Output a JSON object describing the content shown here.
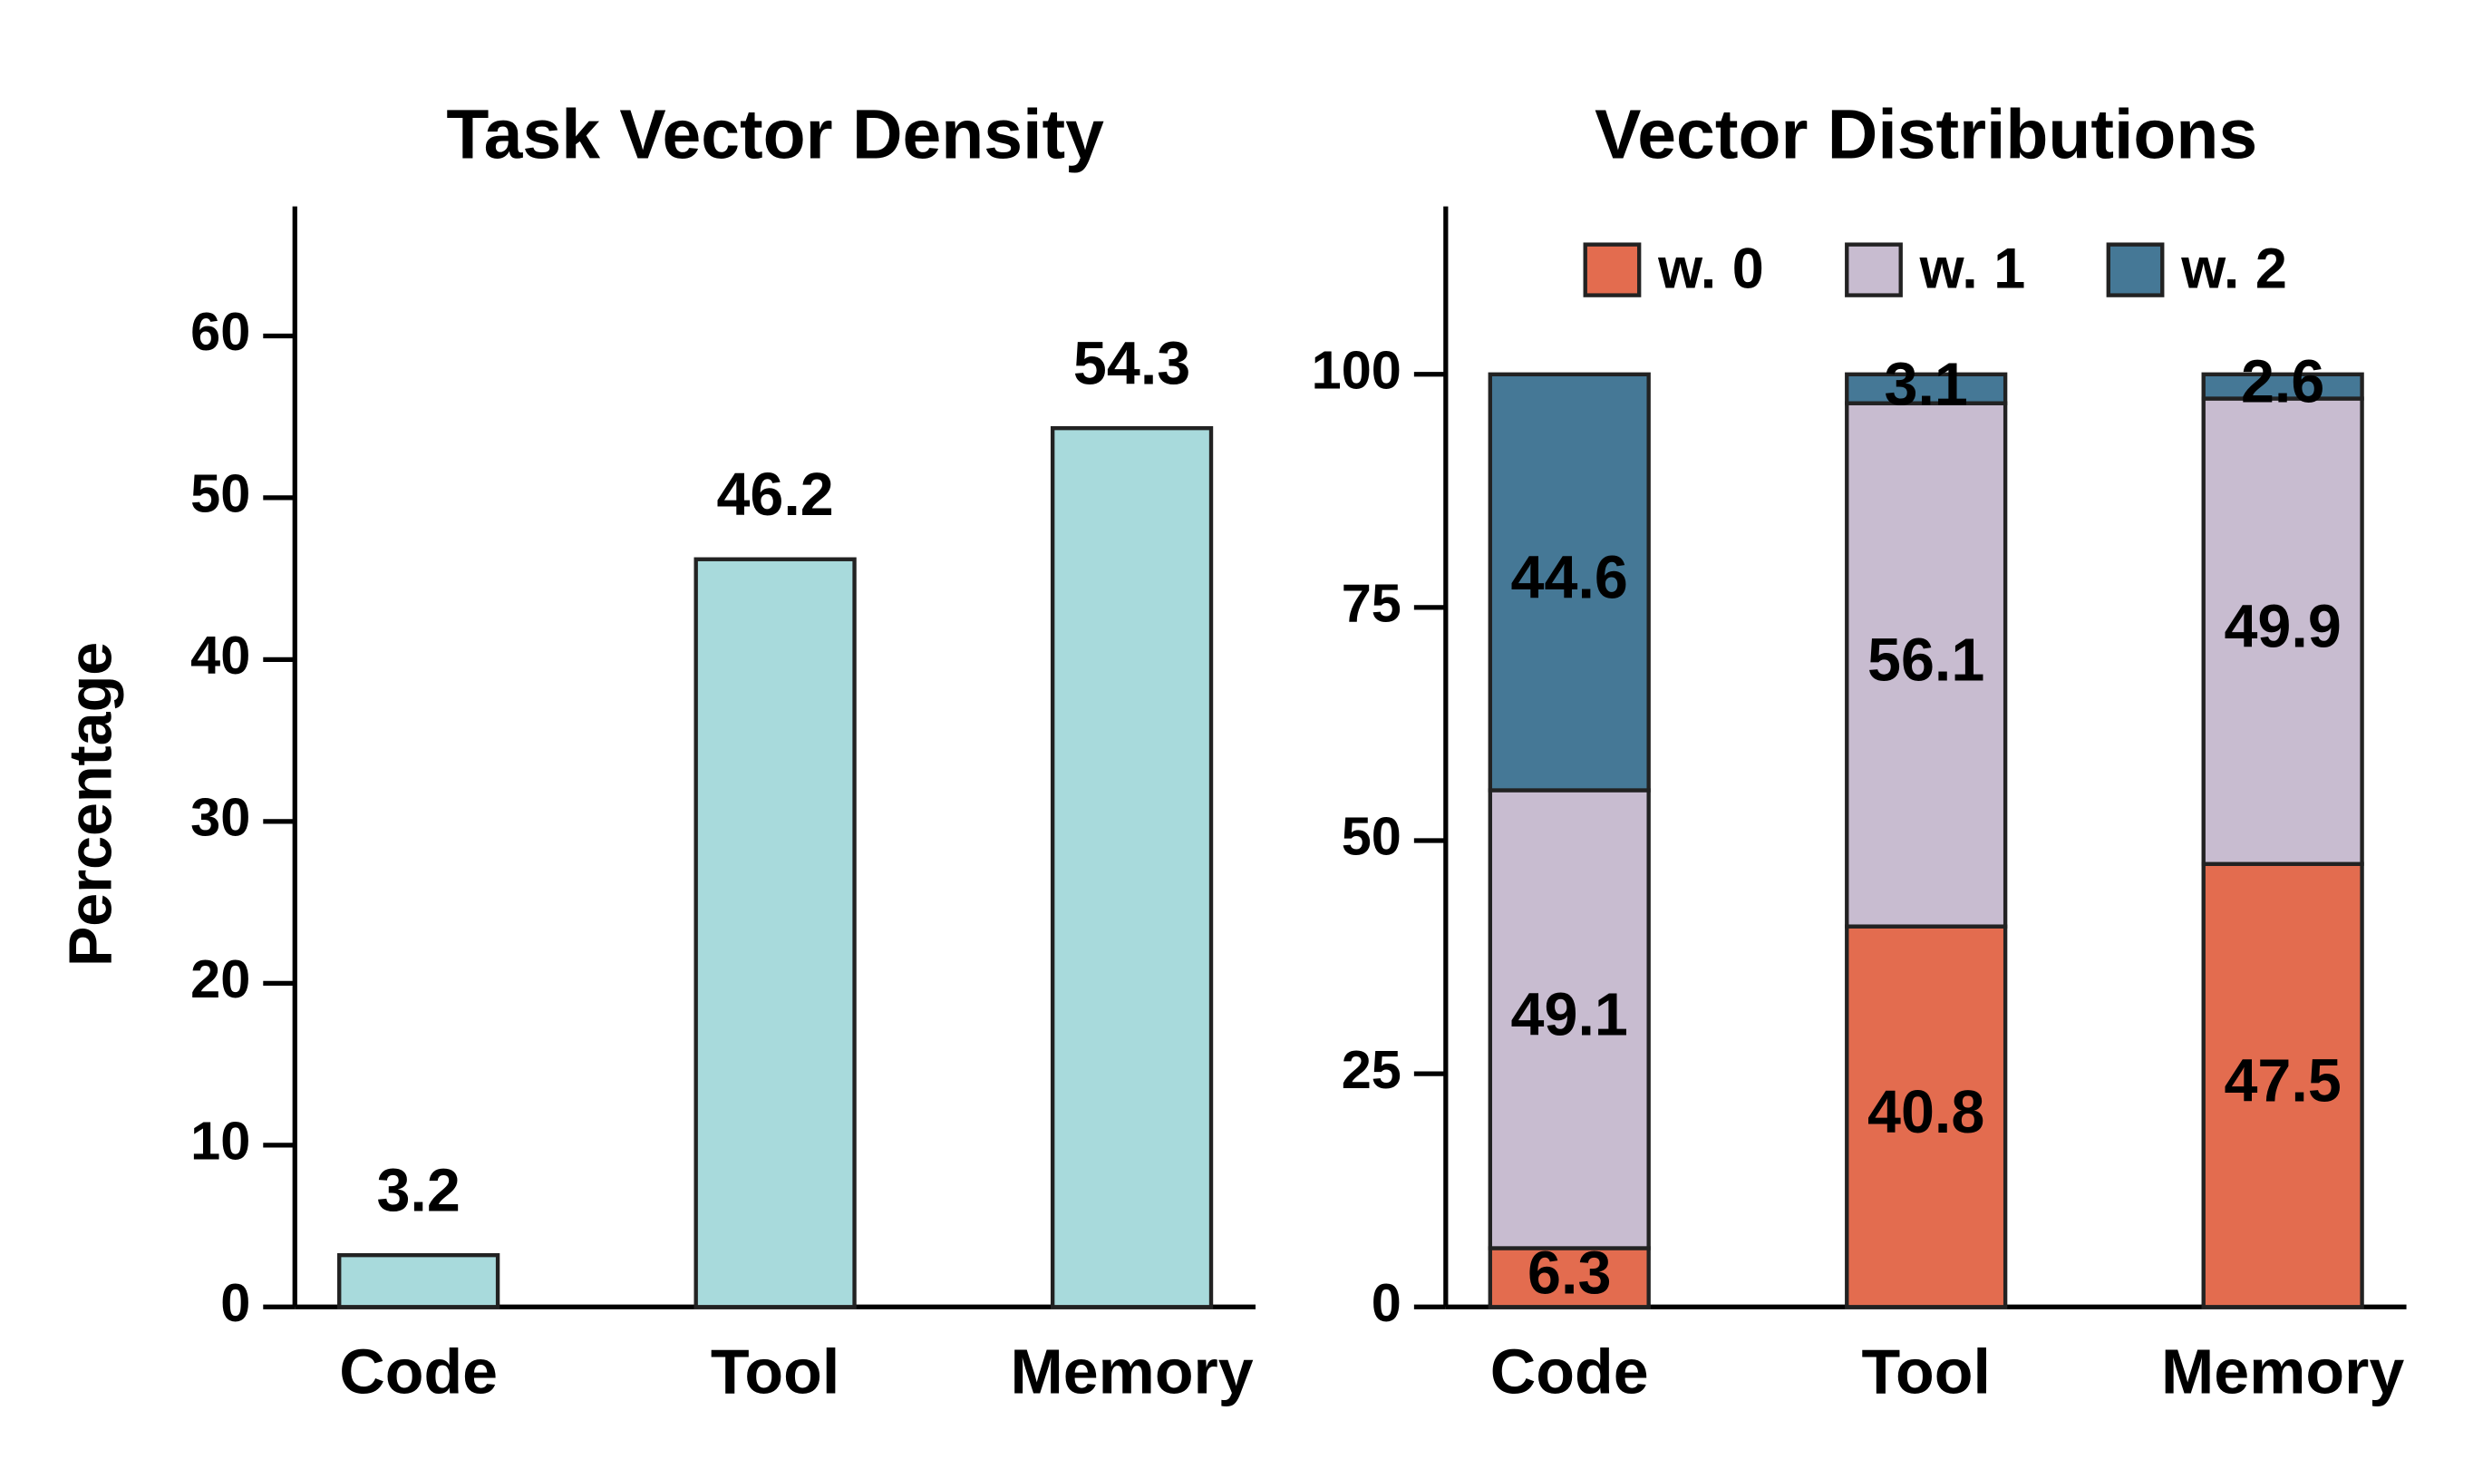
{
  "chart_data": [
    {
      "type": "bar",
      "title": "Task Vector Density",
      "y_label": "Percentage",
      "categories": [
        "Code",
        "Tool",
        "Memory"
      ],
      "values": [
        3.2,
        46.2,
        54.3
      ],
      "color": "#a8dadc",
      "ylim": [
        0,
        68
      ],
      "yticks": [
        0,
        10,
        20,
        30,
        40,
        50,
        60
      ],
      "grid": false
    },
    {
      "type": "stacked_bar",
      "title": "Vector Distributions",
      "categories": [
        "Code",
        "Tool",
        "Memory"
      ],
      "series": [
        {
          "name": "w. 0",
          "color": "#e36c4f",
          "values": [
            6.3,
            40.8,
            47.5
          ]
        },
        {
          "name": "w. 1",
          "color": "#c8bcd0",
          "values": [
            49.1,
            56.1,
            49.9
          ]
        },
        {
          "name": "w. 2",
          "color": "#457896",
          "values": [
            44.6,
            3.1,
            2.6
          ]
        }
      ],
      "ylim": [
        0,
        118
      ],
      "yticks": [
        0,
        25,
        50,
        75,
        100
      ],
      "grid": false,
      "legend": "upper center"
    }
  ]
}
